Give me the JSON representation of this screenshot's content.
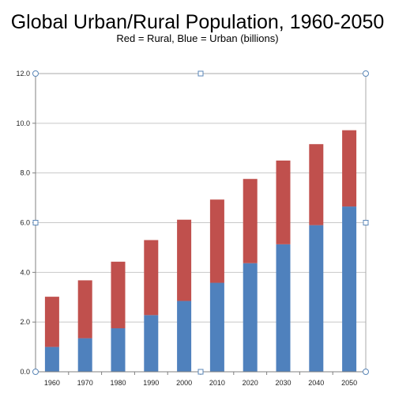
{
  "chart_data": {
    "type": "bar",
    "stacked": true,
    "title": "Global Urban/Rural Population, 1960-2050",
    "subtitle": "Red = Rural, Blue = Urban (billions)",
    "categories": [
      "1960",
      "1970",
      "1980",
      "1990",
      "2000",
      "2010",
      "2020",
      "2030",
      "2040",
      "2050"
    ],
    "series": [
      {
        "name": "Urban",
        "color": "#4f81bd",
        "values": [
          1.0,
          1.35,
          1.75,
          2.28,
          2.85,
          3.58,
          4.37,
          5.13,
          5.9,
          6.65
        ]
      },
      {
        "name": "Rural",
        "color": "#c0504d",
        "values": [
          2.02,
          2.33,
          2.68,
          3.02,
          3.27,
          3.35,
          3.39,
          3.37,
          3.26,
          3.07
        ]
      }
    ],
    "yticks": [
      "0.0",
      "2.0",
      "4.0",
      "6.0",
      "8.0",
      "10.0",
      "12.0"
    ],
    "ylim": [
      0,
      12
    ],
    "grid": true,
    "xlabel": "",
    "ylabel": ""
  }
}
